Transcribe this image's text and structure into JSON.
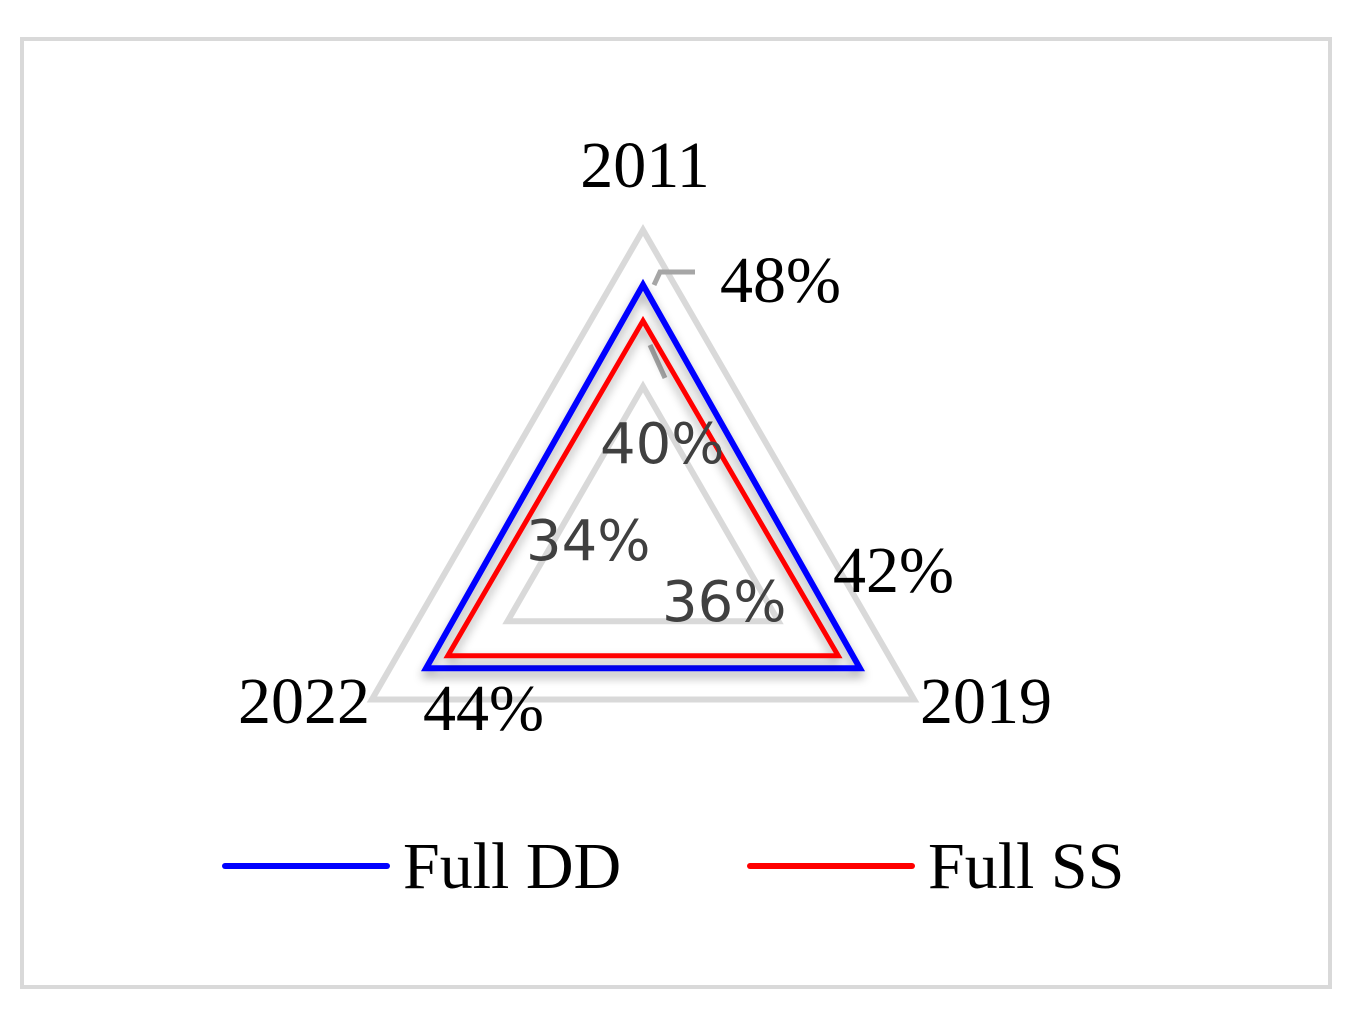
{
  "chart_data": {
    "type": "radar",
    "categories": [
      "2011",
      "2019",
      "2022"
    ],
    "rlim": [
      30,
      50
    ],
    "tick_labels": [
      "34%",
      "36%",
      "40%",
      "42%",
      "44%",
      "48%"
    ],
    "series": [
      {
        "name": "Full DD",
        "color": "#0000ff",
        "values": [
          46.5,
          46.0,
          46.0
        ]
      },
      {
        "name": "Full SS",
        "color": "#ff0000",
        "values": [
          44.2,
          44.4,
          44.4
        ]
      }
    ],
    "grid_color": "#d9d9d9",
    "legend_position": "bottom"
  }
}
